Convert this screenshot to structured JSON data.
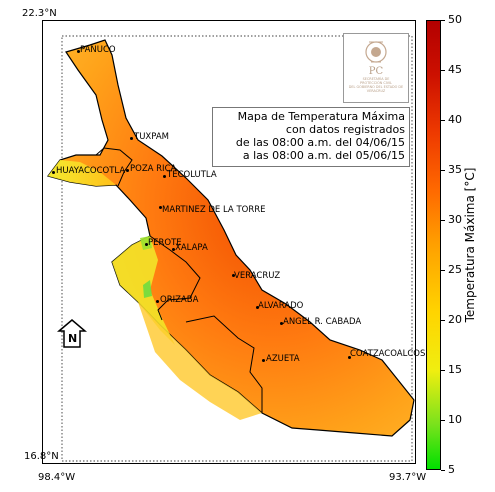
{
  "title_lines": [
    "Mapa de Temperatura Máxima",
    "con datos registrados",
    "de las 08:00 a.m. del 04/06/15",
    "a las 08:00 a.m. del 05/06/15"
  ],
  "coords": {
    "lat_top": "22.3°N",
    "lat_bottom": "16.8°N",
    "lon_left": "98.4°W",
    "lon_right": "93.7°W"
  },
  "north_label": "N",
  "colorbar": {
    "title": "Temperatura Máxima [°C]",
    "ticks": [
      "50",
      "45",
      "40",
      "35",
      "30",
      "25",
      "20",
      "15",
      "10",
      "5"
    ],
    "min": 5,
    "max": 50,
    "colors": [
      "#00e000",
      "#f0ee10",
      "#ffa000",
      "#ee3a00",
      "#b30000"
    ]
  },
  "logo": {
    "text": "PC",
    "lines": [
      "SECRETARÍA DE",
      "PROTECCIÓN CIVIL",
      "DEL GOBIERNO DEL ESTADO DE VERACRUZ"
    ]
  },
  "cities": [
    "PANUCO",
    "TUXPAM",
    "HUAYACOCOTLA",
    "POZA RICA",
    "TECOLUTLA",
    "MARTINEZ DE LA TORRE",
    "PEROTE",
    "XALAPA",
    "VERACRUZ",
    "ORIZABA",
    "ALVARADO",
    "ANGEL R. CABADA",
    "AZUETA",
    "COATZACOALCOS"
  ]
}
